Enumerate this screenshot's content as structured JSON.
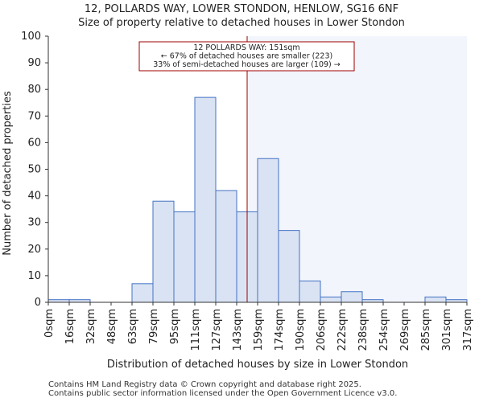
{
  "chart_data": {
    "type": "bar",
    "title": "12, POLLARDS WAY, LOWER STONDON, HENLOW, SG16 6NF",
    "subtitle": "Size of property relative to detached houses in Lower Stondon",
    "xlabel": "Distribution of detached houses by size in Lower Stondon",
    "ylabel": "Number of detached properties",
    "ylim": [
      0,
      100
    ],
    "yticks": [
      0,
      10,
      20,
      30,
      40,
      50,
      60,
      70,
      80,
      90,
      100
    ],
    "bin_edges": [
      0,
      16,
      32,
      48,
      63,
      79,
      95,
      111,
      127,
      143,
      159,
      174,
      190,
      206,
      222,
      238,
      254,
      269,
      285,
      301,
      317
    ],
    "tick_labels": [
      "0sqm",
      "16sqm",
      "32sqm",
      "48sqm",
      "63sqm",
      "79sqm",
      "95sqm",
      "111sqm",
      "127sqm",
      "143sqm",
      "159sqm",
      "174sqm",
      "190sqm",
      "206sqm",
      "222sqm",
      "238sqm",
      "254sqm",
      "269sqm",
      "285sqm",
      "301sqm",
      "317sqm"
    ],
    "values": [
      1,
      1,
      0,
      0,
      7,
      38,
      34,
      77,
      42,
      34,
      54,
      27,
      8,
      2,
      4,
      1,
      0,
      0,
      2,
      1
    ],
    "marker_value": 151,
    "annotation": [
      "12 POLLARDS WAY: 151sqm",
      "← 67% of detached houses are smaller (223)",
      "33% of semi-detached houses are larger (109) →"
    ],
    "colors": {
      "bar_fill": "#dae3f3",
      "bar_edge": "#4472c4",
      "marker": "#a00000",
      "right_shade": "#f2f5fc"
    }
  },
  "footer": {
    "line1": "Contains HM Land Registry data © Crown copyright and database right 2025.",
    "line2": "Contains public sector information licensed under the Open Government Licence v3.0."
  }
}
